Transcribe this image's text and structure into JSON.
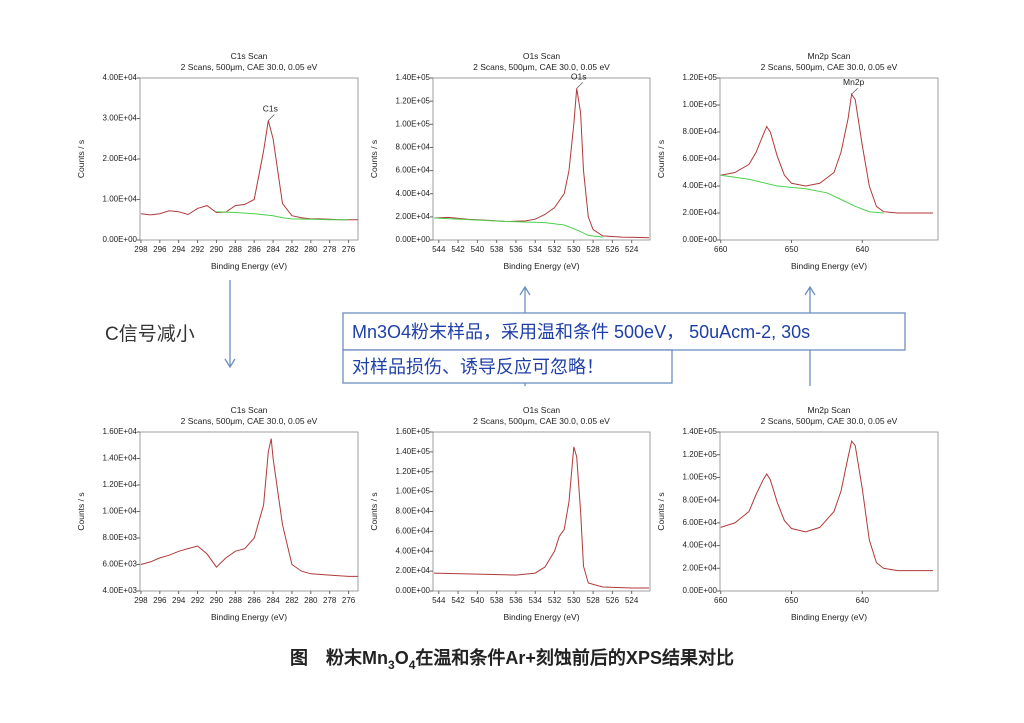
{
  "chart_data": [
    {
      "type": "line",
      "title": "C1s Scan",
      "subtitle": "2 Scans,  500μm,  CAE 30.0,  0.05 eV",
      "xlabel": "Binding Energy (eV)",
      "ylabel": "Counts / s",
      "annotation": "C1s",
      "xlim": [
        298.1,
        275
      ],
      "xticks": [
        298,
        296,
        294,
        292,
        290,
        288,
        286,
        284,
        282,
        280,
        278,
        276
      ],
      "ylim": [
        0,
        40000
      ],
      "yticks": [
        {
          "value": 0,
          "label": "0.00E+00"
        },
        {
          "value": 10000,
          "label": "1.00E+04"
        },
        {
          "value": 20000,
          "label": "2.00E+04"
        },
        {
          "value": 30000,
          "label": "3.00E+04"
        },
        {
          "value": 40000,
          "label": "4.00E+04"
        }
      ],
      "series": [
        {
          "color": "#b03a3a",
          "x": [
            298,
            297,
            296,
            295,
            294,
            293,
            292,
            291,
            290,
            289,
            288,
            287,
            286,
            285,
            284.5,
            284,
            283,
            282,
            281,
            280,
            279,
            278,
            277,
            276,
            275
          ],
          "values": [
            6500,
            6200,
            6500,
            7200,
            7000,
            6300,
            7800,
            8500,
            6800,
            6900,
            8500,
            8800,
            10000,
            22000,
            29500,
            25000,
            9000,
            6000,
            5500,
            5200,
            5200,
            5100,
            5000,
            5000,
            5000
          ]
        },
        {
          "color": "#4cd24c",
          "x": [
            290,
            288,
            286,
            284,
            283,
            282,
            280,
            278,
            276
          ],
          "values": [
            7000,
            6800,
            6500,
            6000,
            5500,
            5200,
            5100,
            5000,
            5000
          ]
        }
      ]
    },
    {
      "type": "line",
      "title": "O1s Scan",
      "subtitle": "2 Scans,  500μm,  CAE 30.0,  0.05 eV",
      "xlabel": "Binding Energy (eV)",
      "ylabel": "Counts / s",
      "annotation": "O1s",
      "xlim": [
        544.6,
        522.1
      ],
      "xticks": [
        544,
        542,
        540,
        538,
        536,
        534,
        532,
        530,
        528,
        526,
        524
      ],
      "ylim": [
        0,
        140000
      ],
      "yticks": [
        {
          "value": 0,
          "label": "0.00E+00"
        },
        {
          "value": 20000,
          "label": "2.00E+04"
        },
        {
          "value": 40000,
          "label": "4.00E+04"
        },
        {
          "value": 60000,
          "label": "6.00E+04"
        },
        {
          "value": 80000,
          "label": "8.00E+04"
        },
        {
          "value": 100000,
          "label": "1.00E+05"
        },
        {
          "value": 120000,
          "label": "1.20E+05"
        },
        {
          "value": 140000,
          "label": "1.40E+05"
        }
      ],
      "series": [
        {
          "color": "#b03a3a",
          "x": [
            544.5,
            543,
            541,
            539,
            537,
            535,
            534,
            533,
            532,
            531,
            530.5,
            530,
            529.7,
            529.3,
            529,
            528.5,
            528,
            527,
            525,
            522.2
          ],
          "values": [
            19000,
            19500,
            18000,
            17000,
            16000,
            16500,
            18000,
            22000,
            28000,
            40000,
            60000,
            100000,
            131000,
            110000,
            60000,
            20000,
            9000,
            3500,
            2500,
            2000
          ]
        },
        {
          "color": "#4cd24c",
          "x": [
            544.5,
            537,
            533,
            531,
            529.5,
            528.5,
            527
          ],
          "values": [
            19000,
            16000,
            15000,
            13000,
            8000,
            4000,
            2500
          ]
        }
      ]
    },
    {
      "type": "line",
      "title": "Mn2p Scan",
      "subtitle": "2 Scans,  500μm,  CAE 30.0,  0.05 eV",
      "xlabel": "Binding Energy (eV)",
      "ylabel": "Counts / s",
      "annotation": "Mn2p",
      "xlim": [
        660.1,
        629.3
      ],
      "xticks": [
        660,
        650,
        640
      ],
      "ylim": [
        0,
        120000
      ],
      "yticks": [
        {
          "value": 0,
          "label": "0.00E+00"
        },
        {
          "value": 20000,
          "label": "2.00E+04"
        },
        {
          "value": 40000,
          "label": "4.00E+04"
        },
        {
          "value": 60000,
          "label": "6.00E+04"
        },
        {
          "value": 80000,
          "label": "8.00E+04"
        },
        {
          "value": 100000,
          "label": "1.00E+05"
        },
        {
          "value": 120000,
          "label": "1.20E+05"
        }
      ],
      "series": [
        {
          "color": "#b03a3a",
          "x": [
            660,
            658,
            656,
            655,
            654,
            653.5,
            653,
            652,
            651,
            650,
            648,
            646,
            644,
            643,
            642,
            641.5,
            641,
            640,
            639,
            638,
            637,
            635,
            630
          ],
          "values": [
            48000,
            50000,
            56000,
            65000,
            78000,
            84000,
            80000,
            62000,
            48000,
            42000,
            40000,
            42000,
            50000,
            65000,
            90000,
            108000,
            104000,
            70000,
            40000,
            25000,
            21000,
            20000,
            20000
          ]
        },
        {
          "color": "#4cd24c",
          "x": [
            660,
            656,
            652,
            648,
            645,
            643,
            641,
            639,
            637
          ],
          "values": [
            48000,
            45000,
            40000,
            38000,
            35000,
            30000,
            25000,
            21000,
            20000
          ]
        }
      ]
    },
    {
      "type": "line",
      "title": "C1s Scan",
      "subtitle": "2 Scans,  500μm,  CAE 30.0,  0.05 eV",
      "xlabel": "Binding Energy (eV)",
      "ylabel": "Counts / s",
      "xlim": [
        298.1,
        275
      ],
      "xticks": [
        298,
        296,
        294,
        292,
        290,
        288,
        286,
        284,
        282,
        280,
        278,
        276
      ],
      "ylim": [
        4000,
        16000
      ],
      "yticks": [
        {
          "value": 4000,
          "label": "4.00E+03"
        },
        {
          "value": 6000,
          "label": "6.00E+03"
        },
        {
          "value": 8000,
          "label": "8.00E+03"
        },
        {
          "value": 10000,
          "label": "1.00E+04"
        },
        {
          "value": 12000,
          "label": "1.20E+04"
        },
        {
          "value": 14000,
          "label": "1.40E+04"
        },
        {
          "value": 16000,
          "label": "1.60E+04"
        }
      ],
      "series": [
        {
          "color": "#b03a3a",
          "x": [
            298,
            297,
            296,
            295,
            294,
            293,
            292,
            291,
            290,
            289,
            288,
            287,
            286,
            285,
            284.5,
            284.2,
            284,
            283,
            282,
            281,
            280,
            278,
            276,
            275
          ],
          "values": [
            6000,
            6200,
            6500,
            6700,
            7000,
            7200,
            7400,
            6800,
            5800,
            6500,
            7000,
            7200,
            8000,
            10500,
            14500,
            15500,
            14000,
            9000,
            6000,
            5500,
            5300,
            5200,
            5100,
            5100
          ]
        }
      ]
    },
    {
      "type": "line",
      "title": "O1s Scan",
      "subtitle": "2 Scans,  500μm,  CAE 30.0,  0.05 eV",
      "xlabel": "Binding Energy (eV)",
      "ylabel": "Counts / s",
      "xlim": [
        544.6,
        522.1
      ],
      "xticks": [
        544,
        542,
        540,
        538,
        536,
        534,
        532,
        530,
        528,
        526,
        524
      ],
      "ylim": [
        0,
        160000
      ],
      "yticks": [
        {
          "value": 0,
          "label": "0.00E+00"
        },
        {
          "value": 20000,
          "label": "2.00E+04"
        },
        {
          "value": 40000,
          "label": "4.00E+04"
        },
        {
          "value": 60000,
          "label": "6.00E+04"
        },
        {
          "value": 80000,
          "label": "8.00E+04"
        },
        {
          "value": 100000,
          "label": "1.00E+05"
        },
        {
          "value": 120000,
          "label": "1.20E+05"
        },
        {
          "value": 140000,
          "label": "1.40E+05"
        },
        {
          "value": 160000,
          "label": "1.60E+05"
        }
      ],
      "series": [
        {
          "color": "#b03a3a",
          "x": [
            544.5,
            540,
            536,
            534,
            533,
            532,
            531.5,
            531,
            530.5,
            530,
            529.7,
            529.3,
            529,
            528.5,
            527,
            524,
            522.2
          ],
          "values": [
            18000,
            17000,
            16000,
            18000,
            24000,
            40000,
            55000,
            62000,
            90000,
            145000,
            135000,
            80000,
            25000,
            8000,
            4000,
            3000,
            3000
          ]
        }
      ]
    },
    {
      "type": "line",
      "title": "Mn2p Scan",
      "subtitle": "2 Scans,  500μm,  CAE 30.0,  0.05 eV",
      "xlabel": "Binding Energy (eV)",
      "ylabel": "Counts / s",
      "xlim": [
        660.1,
        629.3
      ],
      "xticks": [
        660,
        650,
        640
      ],
      "ylim": [
        0,
        140000
      ],
      "yticks": [
        {
          "value": 0,
          "label": "0.00E+00"
        },
        {
          "value": 20000,
          "label": "2.00E+04"
        },
        {
          "value": 40000,
          "label": "4.00E+04"
        },
        {
          "value": 60000,
          "label": "6.00E+04"
        },
        {
          "value": 80000,
          "label": "8.00E+04"
        },
        {
          "value": 100000,
          "label": "1.00E+05"
        },
        {
          "value": 120000,
          "label": "1.20E+05"
        },
        {
          "value": 140000,
          "label": "1.40E+05"
        }
      ],
      "series": [
        {
          "color": "#b03a3a",
          "x": [
            660,
            658,
            656,
            655,
            654,
            653.5,
            653,
            652,
            651,
            650,
            648,
            646,
            644,
            643,
            642,
            641.5,
            641,
            640,
            639,
            638,
            637,
            635,
            630
          ],
          "values": [
            56000,
            60000,
            70000,
            85000,
            98000,
            103000,
            98000,
            78000,
            62000,
            55000,
            52000,
            56000,
            70000,
            88000,
            118000,
            132000,
            128000,
            90000,
            45000,
            25000,
            20000,
            18000,
            18000
          ]
        }
      ]
    }
  ],
  "notes": {
    "c_signal": "C信号减小",
    "box_line1": "Mn3O4粉末样品，采用温和条件 500eV， 50uAcm-2, 30s",
    "box_line2": "对样品损伤、诱导反应可忽略！"
  },
  "caption": [
    "图　粉末Mn",
    "3",
    "O",
    "4",
    "在温和条件Ar+刻蚀前后的XPS结果对比"
  ]
}
